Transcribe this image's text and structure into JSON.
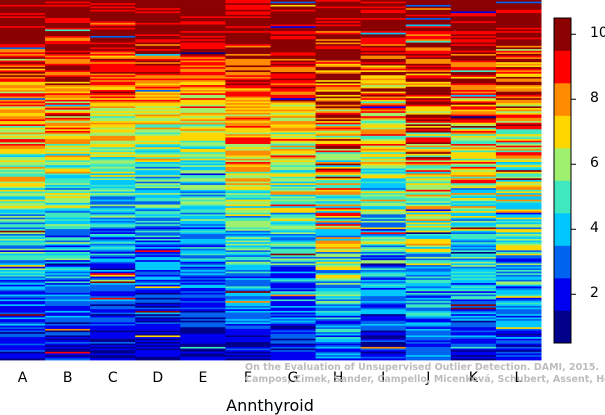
{
  "chart_data": {
    "type": "heatmap",
    "title": "",
    "xlabel": "Annthyroid",
    "ylabel": "",
    "columns": [
      "A",
      "B",
      "C",
      "D",
      "E",
      "F",
      "G",
      "H",
      "I",
      "J",
      "K",
      "L"
    ],
    "colorbar": {
      "ticks": [
        2,
        4,
        6,
        8,
        10
      ],
      "range": [
        0.5,
        10.5
      ],
      "levels": 10,
      "colors": [
        "#00008b",
        "#0000f0",
        "#0064f0",
        "#00c8ff",
        "#40e8c0",
        "#a0f070",
        "#ffd700",
        "#ff8c00",
        "#ff0000",
        "#8b0000"
      ]
    },
    "column_profiles": [
      {
        "name": "A",
        "top": 10,
        "mid": 5.8,
        "bottom": 1.8,
        "noise": 2.2
      },
      {
        "name": "B",
        "top": 10,
        "mid": 5.6,
        "bottom": 1.8,
        "noise": 2.2
      },
      {
        "name": "C",
        "top": 10,
        "mid": 5.0,
        "bottom": 1.4,
        "noise": 1.8
      },
      {
        "name": "D",
        "top": 10,
        "mid": 4.6,
        "bottom": 1.3,
        "noise": 1.6
      },
      {
        "name": "E",
        "top": 10,
        "mid": 4.8,
        "bottom": 1.4,
        "noise": 1.6
      },
      {
        "name": "F",
        "top": 10,
        "mid": 6.2,
        "bottom": 1.5,
        "noise": 2.0
      },
      {
        "name": "G",
        "top": 10,
        "mid": 6.0,
        "bottom": 1.6,
        "noise": 2.2
      },
      {
        "name": "H",
        "top": 10,
        "mid": 6.8,
        "bottom": 3.0,
        "noise": 3.0
      },
      {
        "name": "I",
        "top": 10,
        "mid": 5.8,
        "bottom": 1.8,
        "noise": 2.4
      },
      {
        "name": "J",
        "top": 10,
        "mid": 6.6,
        "bottom": 2.6,
        "noise": 2.6
      },
      {
        "name": "K",
        "top": 10,
        "mid": 6.2,
        "bottom": 1.8,
        "noise": 2.4
      },
      {
        "name": "L",
        "top": 10,
        "mid": 6.4,
        "bottom": 2.0,
        "noise": 2.6
      }
    ]
  },
  "credit": {
    "line1": "On the Evaluation of Unsupervised Outlier Detection. DAMI, 2015.",
    "line2": "Campos, Zimek, Sander, Campello, Micenková, Schubert, Assent, Houle"
  }
}
